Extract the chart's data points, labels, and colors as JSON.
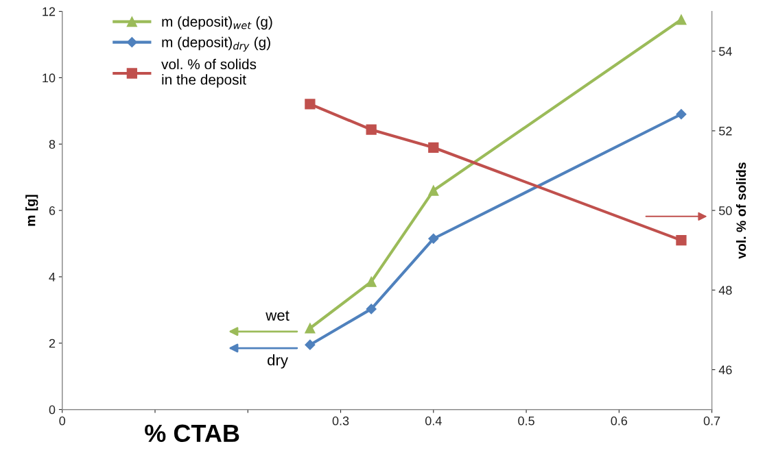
{
  "chart_data": {
    "type": "line",
    "xlabel": "% CTAB",
    "ylabel": "m [g]",
    "y2label": "vol. % of solids",
    "x": [
      0.267,
      0.333,
      0.4,
      0.667
    ],
    "series": [
      {
        "name": "m (deposit)$_{wet}$ (g)",
        "color": "#9bbb59",
        "marker": "triangle",
        "values": [
          2.45,
          3.85,
          6.6,
          11.75
        ]
      },
      {
        "name": "m (deposit)$_{dry}$ (g)",
        "color": "#4f81bd",
        "marker": "diamond",
        "values": [
          1.95,
          3.03,
          5.15,
          8.9
        ]
      },
      {
        "name": "vol. % of solids\nin the deposit",
        "color": "#c0504d",
        "marker": "square",
        "axis": "y2",
        "values": [
          52.67,
          52.03,
          51.58,
          49.25
        ]
      }
    ],
    "xlim": [
      0,
      0.7
    ],
    "xticks": [
      0,
      {
        "value": 0.1,
        "label": null
      },
      {
        "value": 0.2,
        "label": null
      },
      0.3,
      0.4,
      0.5,
      0.6,
      0.7
    ],
    "ylim": [
      0,
      12
    ],
    "yticks": [
      0,
      2,
      4,
      6,
      8,
      10,
      12
    ],
    "y2lim": [
      45,
      55
    ],
    "y2ticks": [
      46,
      48,
      50,
      52,
      54
    ],
    "annotations": [
      "wet",
      "dry"
    ],
    "grid": false,
    "legend": "top left",
    "line_style": "solid"
  }
}
